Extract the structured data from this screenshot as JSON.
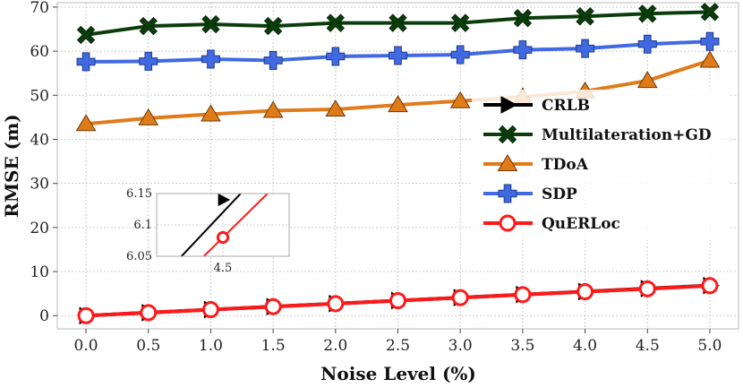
{
  "chart_data": {
    "type": "line",
    "title": "",
    "xlabel": "Noise Level (%)",
    "ylabel": "RMSE (m)",
    "x": [
      0.0,
      0.5,
      1.0,
      1.5,
      2.0,
      2.5,
      3.0,
      3.5,
      4.0,
      4.5,
      5.0
    ],
    "x_tick_labels": [
      "0.0",
      "0.5",
      "1.0",
      "1.5",
      "2.0",
      "2.5",
      "3.0",
      "3.5",
      "4.0",
      "4.5",
      "5.0"
    ],
    "xlim": [
      -0.23,
      5.23
    ],
    "ylim": [
      -3,
      71
    ],
    "y_ticks": [
      0,
      10,
      20,
      30,
      40,
      50,
      60,
      70
    ],
    "y_tick_labels": [
      "0",
      "10",
      "20",
      "30",
      "40",
      "50",
      "60",
      "70"
    ],
    "grid": true,
    "legend_position": "center-right",
    "series": [
      {
        "name": "CRLB",
        "color": "#000000",
        "marker": "triangle-right",
        "values": [
          0.0,
          0.68,
          1.37,
          2.05,
          2.73,
          3.41,
          4.1,
          4.78,
          5.46,
          6.14,
          6.83
        ]
      },
      {
        "name": "Multilateration+GD",
        "color": "#0b3d0b",
        "marker": "x",
        "values": [
          63.7,
          65.7,
          66.1,
          65.7,
          66.4,
          66.4,
          66.4,
          67.5,
          67.9,
          68.5,
          68.9
        ]
      },
      {
        "name": "TDoA",
        "color": "#e07b1a",
        "marker": "triangle-up",
        "values": [
          43.5,
          44.8,
          45.7,
          46.5,
          46.8,
          47.8,
          48.7,
          49.6,
          50.9,
          53.3,
          57.9
        ]
      },
      {
        "name": "SDP",
        "color": "#4169e1",
        "marker": "plus",
        "values": [
          57.6,
          57.7,
          58.2,
          57.9,
          58.8,
          59.0,
          59.2,
          60.3,
          60.6,
          61.6,
          62.2
        ]
      },
      {
        "name": "QuERLoc",
        "color": "#ff1a1a",
        "marker": "circle",
        "values": [
          0.0,
          0.68,
          1.36,
          2.04,
          2.72,
          3.4,
          4.08,
          4.76,
          5.44,
          6.08,
          6.8
        ]
      }
    ],
    "inset": {
      "xlim": [
        4.42,
        4.58
      ],
      "ylim": [
        6.05,
        6.15
      ],
      "x_ticks": [
        4.5
      ],
      "x_tick_labels": [
        "4.5"
      ],
      "y_ticks": [
        6.05,
        6.1,
        6.15
      ],
      "y_tick_labels": [
        "6.05",
        "6.1",
        "6.15"
      ],
      "series": [
        {
          "name": "CRLB",
          "color": "#000000",
          "line": [
            [
              4.4,
              5.98
            ],
            [
              4.6,
              6.26
            ]
          ],
          "marker_point": [
            4.5,
            6.14
          ]
        },
        {
          "name": "QuERLoc",
          "color": "#ff1a1a",
          "line": [
            [
              4.4,
              5.95
            ],
            [
              4.6,
              6.21
            ]
          ],
          "marker_point": [
            4.5,
            6.08
          ]
        }
      ]
    }
  }
}
